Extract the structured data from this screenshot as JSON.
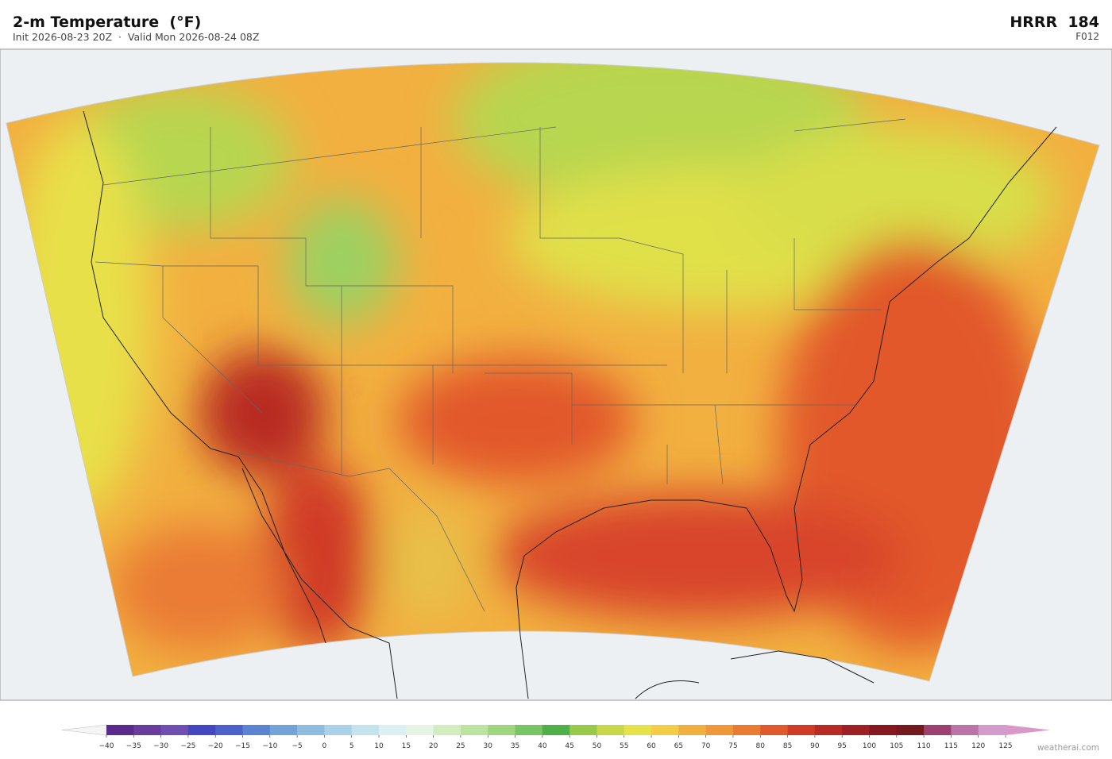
{
  "header": {
    "title": "2-m Temperature  (°F)",
    "subtitle": "Init 2026-08-23 20Z  ·  Valid Mon 2026-08-24 08Z",
    "model": "HRRR  184",
    "forecast_hour": "F012"
  },
  "colorbar": {
    "ticks": [
      {
        "value": -40,
        "label": "−40"
      },
      {
        "value": -35,
        "label": "−35"
      },
      {
        "value": -30,
        "label": "−30"
      },
      {
        "value": -25,
        "label": "−25"
      },
      {
        "value": -20,
        "label": "−20"
      },
      {
        "value": -15,
        "label": "−15"
      },
      {
        "value": -10,
        "label": "−10"
      },
      {
        "value": -5,
        "label": "−5"
      },
      0,
      5,
      10,
      15,
      20,
      25,
      30,
      35,
      40,
      45,
      50,
      55,
      60,
      65,
      70,
      75,
      80,
      85,
      90,
      95,
      100,
      105,
      110,
      115,
      120,
      125
    ],
    "colors": [
      "#5b2a8c",
      "#6a3c9e",
      "#6f4fb0",
      "#4448c0",
      "#4b62c8",
      "#5a83d0",
      "#74a3d8",
      "#8fbde0",
      "#a9d2e8",
      "#c3e3ef",
      "#daf0f3",
      "#e4f5e4",
      "#d3ecc0",
      "#bde3a0",
      "#9dd67e",
      "#78c663",
      "#4fb04a",
      "#98c94a",
      "#c9d84a",
      "#e8e24a",
      "#f3cc48",
      "#f2b040",
      "#ee983a",
      "#ea7b34",
      "#e2592c",
      "#d03b26",
      "#b82a24",
      "#9c2024",
      "#86181f",
      "#741a1e",
      "#9c4070",
      "#bc74a8",
      "#d49ccc"
    ],
    "under_color": "#f5f5f5",
    "over_color": "#d898c8"
  },
  "credit": "weatherai.com"
}
